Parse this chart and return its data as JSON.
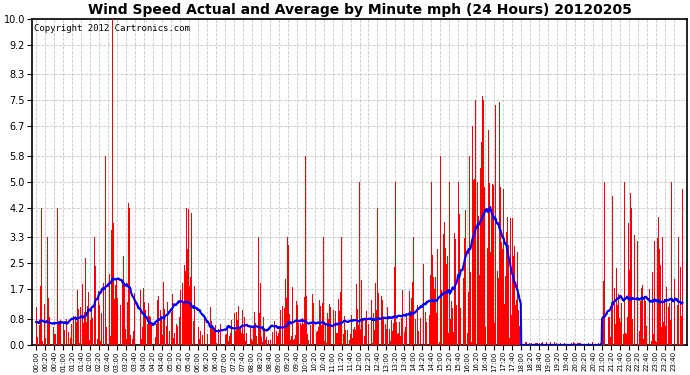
{
  "title": "Wind Speed Actual and Average by Minute mph (24 Hours) 20120205",
  "copyright": "Copyright 2012 Cartronics.com",
  "yticks": [
    0.0,
    0.8,
    1.7,
    2.5,
    3.3,
    4.2,
    5.0,
    5.8,
    6.7,
    7.5,
    8.3,
    9.2,
    10.0
  ],
  "ylim": [
    0.0,
    10.0
  ],
  "bar_color": "#FF0000",
  "line_color": "#0000FF",
  "bg_color": "#FFFFFF",
  "grid_color": "#C8C8C8",
  "title_fontsize": 10,
  "copyright_fontsize": 6.5,
  "xtick_interval_minutes": 20,
  "total_minutes": 1440,
  "figwidth": 6.9,
  "figheight": 3.75,
  "dpi": 100
}
